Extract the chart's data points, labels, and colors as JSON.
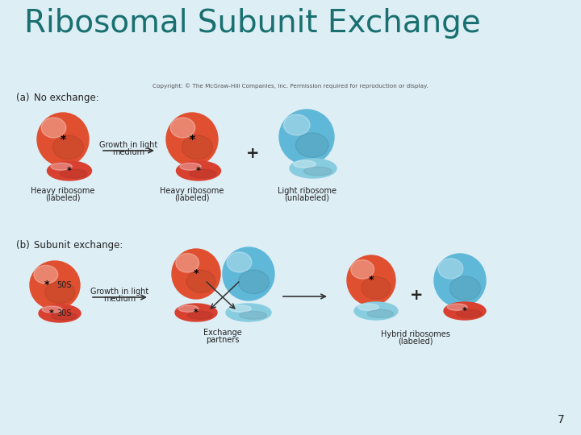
{
  "title": "Ribosomal Subunit Exchange",
  "title_color": "#1a7070",
  "title_fontsize": 28,
  "bg_color": "#ddeef5",
  "red_large": "#e05030",
  "red_small": "#d84030",
  "blue_large": "#60b8d8",
  "blue_small": "#88cce0",
  "text_color": "#222222",
  "copyright": "Copyright: © The McGraw-Hill Companies, Inc. Permission required for reproduction or display.",
  "page_number": "7"
}
